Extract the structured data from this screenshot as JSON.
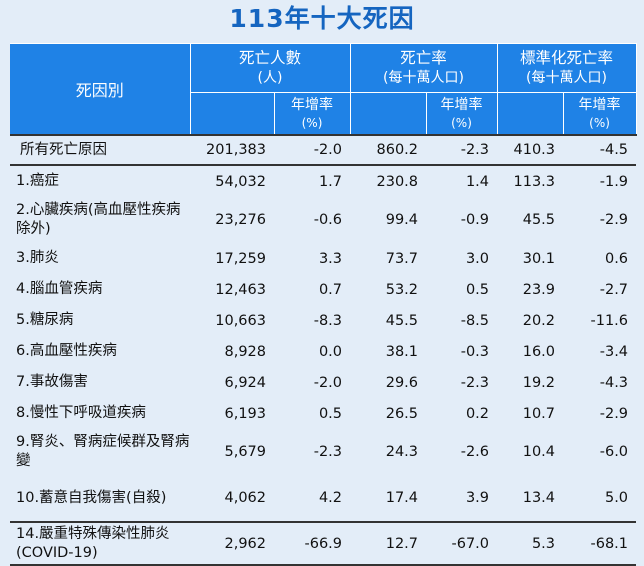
{
  "title": "113年十大死因",
  "header": {
    "cause": "死因別",
    "deaths": "死亡人數",
    "deaths_unit": "(人)",
    "rate": "死亡率",
    "rate_unit": "(每十萬人口)",
    "std_rate": "標準化死亡率",
    "std_rate_unit": "(每十萬人口)",
    "yoy": "年增率",
    "yoy_unit": "(%)"
  },
  "rows": [
    {
      "cause": "所有死亡原因",
      "deaths": "201,383",
      "deaths_yoy": "-2.0",
      "rate": "860.2",
      "rate_yoy": "-2.3",
      "std": "410.3",
      "std_yoy": "-4.5"
    },
    {
      "cause": "1.癌症",
      "deaths": "54,032",
      "deaths_yoy": "1.7",
      "rate": "230.8",
      "rate_yoy": "1.4",
      "std": "113.3",
      "std_yoy": "-1.9"
    },
    {
      "cause": "2.心臟疾病(高血壓性疾病除外)",
      "deaths": "23,276",
      "deaths_yoy": "-0.6",
      "rate": "99.4",
      "rate_yoy": "-0.9",
      "std": "45.5",
      "std_yoy": "-2.9"
    },
    {
      "cause": "3.肺炎",
      "deaths": "17,259",
      "deaths_yoy": "3.3",
      "rate": "73.7",
      "rate_yoy": "3.0",
      "std": "30.1",
      "std_yoy": "0.6"
    },
    {
      "cause": "4.腦血管疾病",
      "deaths": "12,463",
      "deaths_yoy": "0.7",
      "rate": "53.2",
      "rate_yoy": "0.5",
      "std": "23.9",
      "std_yoy": "-2.7"
    },
    {
      "cause": "5.糖尿病",
      "deaths": "10,663",
      "deaths_yoy": "-8.3",
      "rate": "45.5",
      "rate_yoy": "-8.5",
      "std": "20.2",
      "std_yoy": "-11.6"
    },
    {
      "cause": "6.高血壓性疾病",
      "deaths": "8,928",
      "deaths_yoy": "0.0",
      "rate": "38.1",
      "rate_yoy": "-0.3",
      "std": "16.0",
      "std_yoy": "-3.4"
    },
    {
      "cause": "7.事故傷害",
      "deaths": "6,924",
      "deaths_yoy": "-2.0",
      "rate": "29.6",
      "rate_yoy": "-2.3",
      "std": "19.2",
      "std_yoy": "-4.3"
    },
    {
      "cause": "8.慢性下呼吸道疾病",
      "deaths": "6,193",
      "deaths_yoy": "0.5",
      "rate": "26.5",
      "rate_yoy": "0.2",
      "std": "10.7",
      "std_yoy": "-2.9"
    },
    {
      "cause": "9.腎炎、腎病症候群及腎病變",
      "deaths": "5,679",
      "deaths_yoy": "-2.3",
      "rate": "24.3",
      "rate_yoy": "-2.6",
      "std": "10.4",
      "std_yoy": "-6.0"
    },
    {
      "cause": "10.蓄意自我傷害(自殺)",
      "deaths": "4,062",
      "deaths_yoy": "4.2",
      "rate": "17.4",
      "rate_yoy": "3.9",
      "std": "13.4",
      "std_yoy": "5.0"
    },
    {
      "cause": "14.嚴重特殊傳染性肺炎(COVID-19)",
      "deaths": "2,962",
      "deaths_yoy": "-66.9",
      "rate": "12.7",
      "rate_yoy": "-67.0",
      "std": "5.3",
      "std_yoy": "-68.1"
    }
  ]
}
